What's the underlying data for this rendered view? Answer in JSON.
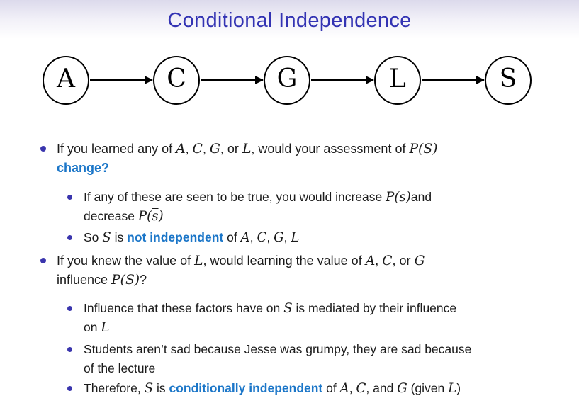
{
  "slide": {
    "title": "Conditional Independence"
  },
  "colors": {
    "title_text": "#3333b3",
    "alert_text": "#1b76c8",
    "bullet_marker": "#3a35ad",
    "body_text": "#1b1b1b",
    "node_stroke": "#000000",
    "background_top": "#dcdaec"
  },
  "diagram": {
    "type": "directed-chain",
    "nodes": [
      {
        "id": "A",
        "label": "A"
      },
      {
        "id": "C",
        "label": "C"
      },
      {
        "id": "G",
        "label": "G"
      },
      {
        "id": "L",
        "label": "L"
      },
      {
        "id": "S",
        "label": "S"
      }
    ],
    "edges": [
      {
        "from": "A",
        "to": "C"
      },
      {
        "from": "C",
        "to": "G"
      },
      {
        "from": "G",
        "to": "L"
      },
      {
        "from": "L",
        "to": "S"
      }
    ]
  },
  "bullets": [
    {
      "level": 1,
      "segments": [
        {
          "style": "plain",
          "text": "If you learned any of "
        },
        {
          "style": "math",
          "text": "A"
        },
        {
          "style": "plain",
          "text": ", "
        },
        {
          "style": "math",
          "text": "C"
        },
        {
          "style": "plain",
          "text": ", "
        },
        {
          "style": "math",
          "text": "G"
        },
        {
          "style": "plain",
          "text": ", or "
        },
        {
          "style": "math",
          "text": "L"
        },
        {
          "style": "plain",
          "text": ", would your assessment of "
        },
        {
          "style": "math",
          "text": "P(S)"
        },
        {
          "style": "linebreak"
        },
        {
          "style": "alert",
          "text": "change?"
        }
      ]
    },
    {
      "level": 2,
      "segments": [
        {
          "style": "plain",
          "text": "If any of these are seen to be true, you would increase "
        },
        {
          "style": "math",
          "text": "P(s)"
        },
        {
          "style": "plain",
          "text": "and"
        },
        {
          "style": "linebreak"
        },
        {
          "style": "plain",
          "text": "decrease "
        },
        {
          "style": "math",
          "text": "P("
        },
        {
          "style": "math-overline",
          "text": "s"
        },
        {
          "style": "math",
          "text": ")"
        }
      ]
    },
    {
      "level": 2,
      "segments": [
        {
          "style": "plain",
          "text": "So "
        },
        {
          "style": "math",
          "text": "S"
        },
        {
          "style": "plain",
          "text": " is "
        },
        {
          "style": "alert",
          "text": "not independent"
        },
        {
          "style": "plain",
          "text": " of "
        },
        {
          "style": "math",
          "text": "A"
        },
        {
          "style": "plain",
          "text": ", "
        },
        {
          "style": "math",
          "text": "C"
        },
        {
          "style": "plain",
          "text": ", "
        },
        {
          "style": "math",
          "text": "G"
        },
        {
          "style": "plain",
          "text": ", "
        },
        {
          "style": "math",
          "text": "L"
        }
      ]
    },
    {
      "level": 1,
      "segments": [
        {
          "style": "plain",
          "text": "If you knew the value of "
        },
        {
          "style": "math",
          "text": "L"
        },
        {
          "style": "plain",
          "text": ", would learning the value of "
        },
        {
          "style": "math",
          "text": "A"
        },
        {
          "style": "plain",
          "text": ", "
        },
        {
          "style": "math",
          "text": "C"
        },
        {
          "style": "plain",
          "text": ", or "
        },
        {
          "style": "math",
          "text": "G"
        },
        {
          "style": "linebreak"
        },
        {
          "style": "plain",
          "text": "influence "
        },
        {
          "style": "math",
          "text": "P(S)"
        },
        {
          "style": "plain",
          "text": "?"
        }
      ]
    },
    {
      "level": 2,
      "segments": [
        {
          "style": "plain",
          "text": "Influence that these factors have on "
        },
        {
          "style": "math",
          "text": "S"
        },
        {
          "style": "plain",
          "text": " is mediated by their influence"
        },
        {
          "style": "linebreak"
        },
        {
          "style": "plain",
          "text": "on "
        },
        {
          "style": "math",
          "text": "L"
        }
      ]
    },
    {
      "level": 2,
      "segments": [
        {
          "style": "plain",
          "text": "Students aren’t sad because Jesse was grumpy, they are sad because"
        },
        {
          "style": "linebreak"
        },
        {
          "style": "plain",
          "text": "of the lecture"
        }
      ]
    },
    {
      "level": 2,
      "segments": [
        {
          "style": "plain",
          "text": "Therefore, "
        },
        {
          "style": "math",
          "text": "S"
        },
        {
          "style": "plain",
          "text": " is "
        },
        {
          "style": "alert",
          "text": "conditionally independent"
        },
        {
          "style": "plain",
          "text": " of "
        },
        {
          "style": "math",
          "text": "A"
        },
        {
          "style": "plain",
          "text": ", "
        },
        {
          "style": "math",
          "text": "C"
        },
        {
          "style": "plain",
          "text": ", and "
        },
        {
          "style": "math",
          "text": "G"
        },
        {
          "style": "plain",
          "text": " (given "
        },
        {
          "style": "math",
          "text": "L"
        },
        {
          "style": "plain",
          "text": ")"
        }
      ]
    }
  ]
}
